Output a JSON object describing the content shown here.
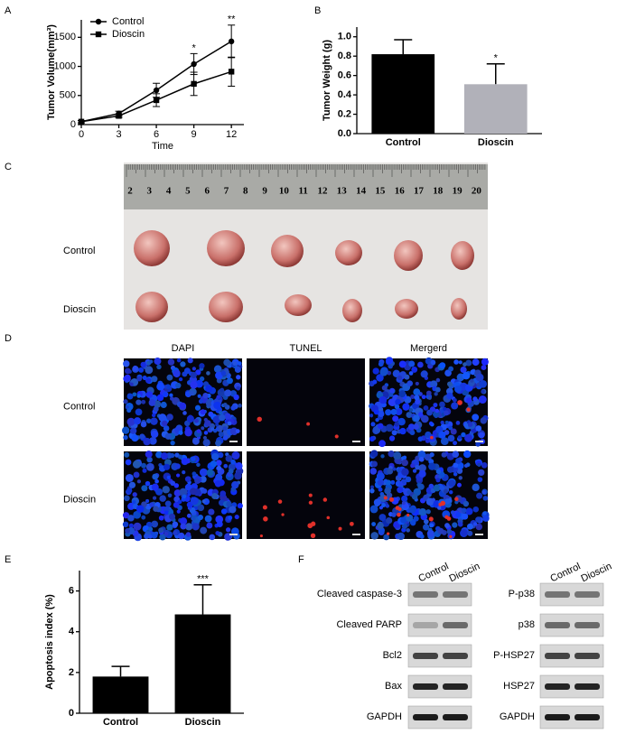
{
  "panels": [
    "A",
    "B",
    "C",
    "D",
    "E",
    "F"
  ],
  "chart_data": [
    {
      "type": "line",
      "xlabel": "Time",
      "ylabel": "Tumor Volume(mm³)",
      "x": [
        0,
        3,
        6,
        9,
        12
      ],
      "xlim": [
        0,
        13
      ],
      "xticks": [
        0,
        3,
        6,
        9,
        12
      ],
      "ylim": [
        0,
        1800
      ],
      "yticks": [
        0,
        500,
        1000,
        1500
      ],
      "legend": "upper left",
      "series": [
        {
          "name": "Control",
          "color": "#000000",
          "marker": "circle",
          "values": [
            50,
            190,
            590,
            1040,
            1430
          ],
          "errors": [
            20,
            40,
            120,
            180,
            280
          ]
        },
        {
          "name": "Dioscin",
          "color": "#000000",
          "marker": "square",
          "values": [
            50,
            150,
            420,
            700,
            910
          ],
          "errors": [
            20,
            30,
            110,
            200,
            250
          ]
        }
      ],
      "annotations": [
        {
          "text": "*",
          "x": 9
        },
        {
          "text": "**",
          "x": 12
        }
      ]
    },
    {
      "type": "bar",
      "ylabel": "Tumor Weight (g)",
      "categories": [
        "Control",
        "Dioscin"
      ],
      "values": [
        0.82,
        0.51
      ],
      "errors": [
        0.15,
        0.21
      ],
      "colors": [
        "#000000",
        "#b1b1b9"
      ],
      "ylim": [
        0,
        1.1
      ],
      "yticks": [
        {
          "value": 0,
          "label": "0.0"
        },
        0.2,
        0.4,
        0.6,
        0.8,
        {
          "value": 1,
          "label": "1.0"
        }
      ],
      "annotations": [
        {
          "text": "*",
          "category": 1
        }
      ]
    },
    {
      "type": "bar",
      "ylabel": "Apoptosis index (%)",
      "categories": [
        "Control",
        "Dioscin"
      ],
      "values": [
        1.8,
        4.85
      ],
      "errors": [
        0.5,
        1.45
      ],
      "colors": [
        "#000000",
        "#000000"
      ],
      "ylim": [
        0,
        7
      ],
      "yticks": [
        0,
        2,
        4,
        6
      ],
      "annotations": [
        {
          "text": "***",
          "category": 1
        }
      ]
    }
  ],
  "photo": {
    "ruler_numbers": [
      2,
      3,
      4,
      5,
      6,
      7,
      8,
      9,
      10,
      11,
      12,
      13,
      14,
      15,
      16,
      17,
      18,
      19,
      20
    ],
    "rows": [
      "Control",
      "Dioscin"
    ]
  },
  "tunel": {
    "columns": [
      "DAPI",
      "TUNEL",
      "Mergerd"
    ],
    "rows": [
      "Control",
      "Dioscin"
    ]
  },
  "western": {
    "columns": [
      "Control",
      "Dioscin"
    ],
    "left_labels": [
      "Cleaved caspase-3",
      "Cleaved PARP",
      "Bcl2",
      "Bax",
      "GAPDH"
    ],
    "right_labels": [
      "P-p38",
      "p38",
      "P-HSP27",
      "HSP27",
      "GAPDH"
    ]
  }
}
